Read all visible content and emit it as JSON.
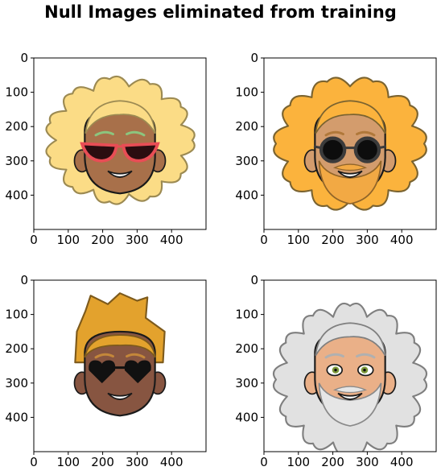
{
  "suptitle": "Null Images eliminated from training",
  "chart_data": [
    {
      "type": "image",
      "panel": "top-left",
      "xlim": [
        0,
        500
      ],
      "ylim": [
        500,
        0
      ],
      "xticks": [
        "0",
        "100",
        "200",
        "300",
        "400"
      ],
      "yticks": [
        "0",
        "100",
        "200",
        "300",
        "400"
      ],
      "image": {
        "hair": "blonde-curly",
        "hair_color": "#fbdc86",
        "hair_outline": "#9c8a52",
        "skin_color": "#a8704a",
        "brow_color": "#8cc57e",
        "glasses": "red-cat-eye",
        "glasses_color": "#e84d55",
        "beard": false
      }
    },
    {
      "type": "image",
      "panel": "top-right",
      "xlim": [
        0,
        500
      ],
      "ylim": [
        500,
        0
      ],
      "xticks": [
        "0",
        "100",
        "200",
        "300",
        "400"
      ],
      "yticks": [
        "0",
        "100",
        "200",
        "300",
        "400"
      ],
      "image": {
        "hair": "orange-curly",
        "hair_color": "#fbb33d",
        "hair_outline": "#7a6330",
        "skin_color": "#d39c6d",
        "brow_color": "#b0783a",
        "glasses": "round-dark",
        "glasses_color": "#3b3b3b",
        "beard": true,
        "beard_color": "#f2a944"
      }
    },
    {
      "type": "image",
      "panel": "bottom-left",
      "xlim": [
        0,
        500
      ],
      "ylim": [
        500,
        0
      ],
      "xticks": [
        "0",
        "100",
        "200",
        "300",
        "400"
      ],
      "yticks": [
        "0",
        "100",
        "200",
        "300",
        "400"
      ],
      "image": {
        "hair": "short-spiky",
        "hair_color": "#e3a22d",
        "hair_outline": "#7d5a1c",
        "skin_color": "#875541",
        "brow_color": "#c4873a",
        "glasses": "heart-black",
        "glasses_color": "#111111",
        "beard": false
      }
    },
    {
      "type": "image",
      "panel": "bottom-right",
      "xlim": [
        0,
        500
      ],
      "ylim": [
        500,
        0
      ],
      "xticks": [
        "0",
        "100",
        "200",
        "300",
        "400"
      ],
      "yticks": [
        "0",
        "100",
        "200",
        "300",
        "400"
      ],
      "image": {
        "hair": "white-curly",
        "hair_color": "#e1e1e1",
        "hair_outline": "#7f7f7f",
        "skin_color": "#eab088",
        "brow_color": "#b0b0b0",
        "glasses": "none",
        "eye_color": "#7f9a3a",
        "beard": true,
        "beard_color": "#e6e6e6"
      }
    }
  ]
}
